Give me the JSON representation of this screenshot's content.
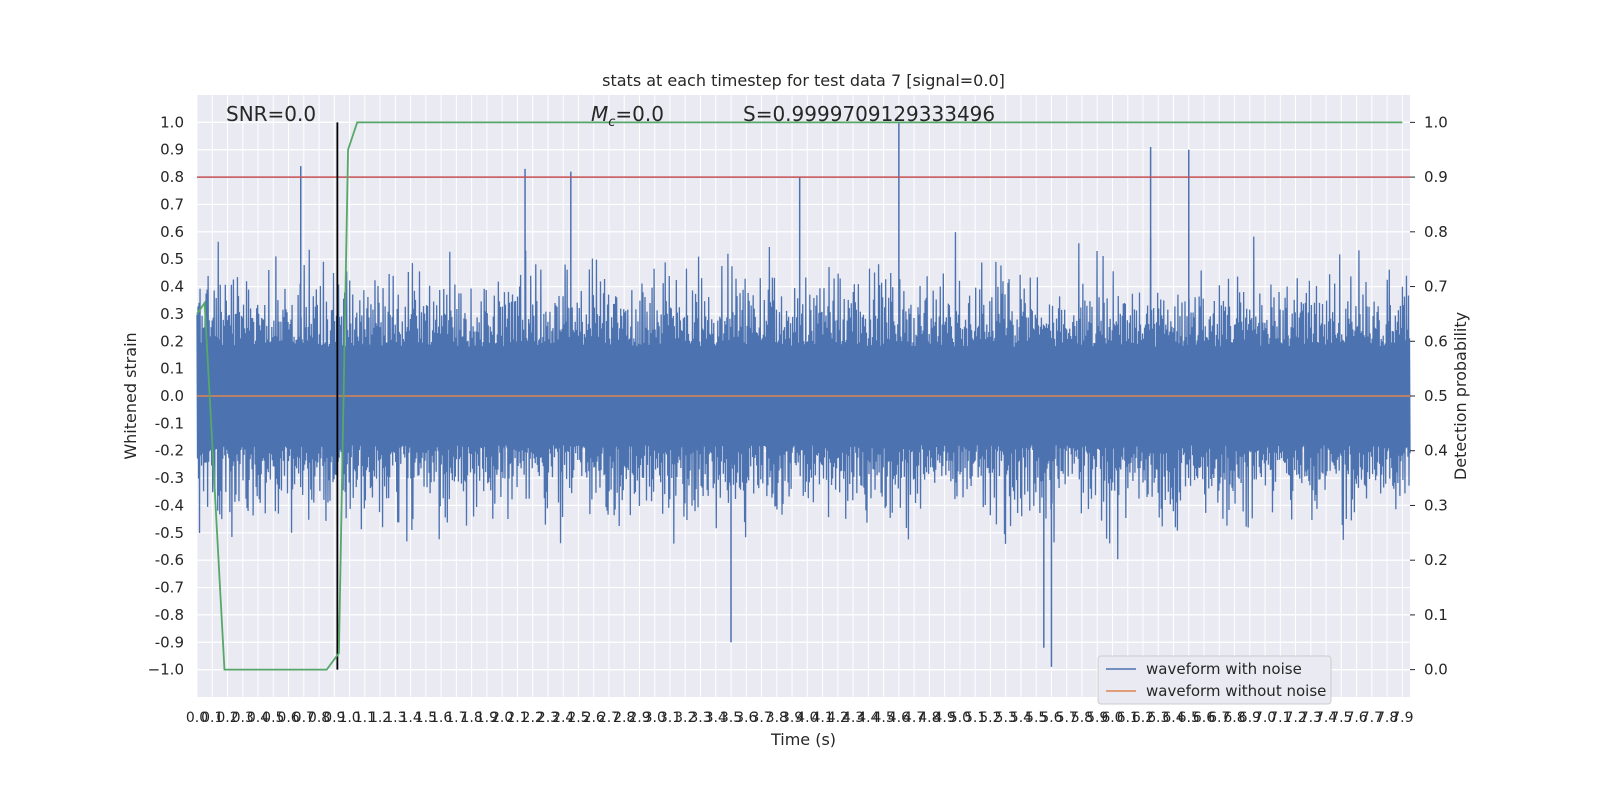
{
  "chart_data": {
    "type": "line",
    "title": "stats at each timestep for test data 7 [signal=0.0]",
    "xlabel": "Time (s)",
    "ylabel": "Whitened strain",
    "y2label": "Detection probability",
    "xlim": [
      0.0,
      7.95
    ],
    "ylim": [
      -1.1,
      1.1
    ],
    "y2lim": [
      -0.05,
      1.05
    ],
    "x_ticks": [
      "0.0",
      "0.1",
      "0.2",
      "0.3",
      "0.4",
      "0.5",
      "0.6",
      "0.7",
      "0.8",
      "0.9",
      "1.0",
      "1.1",
      "1.2",
      "1.3",
      "1.4",
      "1.5",
      "1.6",
      "1.7",
      "1.8",
      "1.9",
      "2.0",
      "2.1",
      "2.2",
      "2.3",
      "2.4",
      "2.5",
      "2.6",
      "2.7",
      "2.8",
      "2.9",
      "3.0",
      "3.1",
      "3.2",
      "3.3",
      "3.4",
      "3.5",
      "3.6",
      "3.7",
      "3.8",
      "3.9",
      "4.0",
      "4.1",
      "4.2",
      "4.3",
      "4.4",
      "4.5",
      "4.6",
      "4.7",
      "4.8",
      "4.9",
      "5.0",
      "5.1",
      "5.2",
      "5.3",
      "5.4",
      "5.5",
      "5.6",
      "5.7",
      "5.8",
      "5.9",
      "6.0",
      "6.1",
      "6.2",
      "6.3",
      "6.4",
      "6.5",
      "6.6",
      "6.7",
      "6.8",
      "6.9",
      "7.0",
      "7.1",
      "7.2",
      "7.3",
      "7.4",
      "7.5",
      "7.6",
      "7.7",
      "7.8",
      "7.9"
    ],
    "y_ticks": [
      "1.0",
      "0.9",
      "0.8",
      "0.7",
      "0.6",
      "0.5",
      "0.4",
      "0.3",
      "0.2",
      "0.1",
      "0.0",
      "-0.1",
      "-0.2",
      "-0.3",
      "-0.4",
      "-0.5",
      "-0.6",
      "-0.7",
      "-0.8",
      "-0.9",
      "−1.0"
    ],
    "y2_ticks": [
      "1.0",
      "0.9",
      "0.8",
      "0.7",
      "0.6",
      "0.5",
      "0.4",
      "0.3",
      "0.2",
      "0.1",
      "0.0"
    ],
    "annotations": {
      "snr": "SNR=0.0",
      "mc_symbol": "M",
      "mc_sub": "c",
      "mc_value": "=0.0",
      "s": "S=0.9999709129333496"
    },
    "threshold_prob": 0.9,
    "vline_time": 0.92,
    "legend": {
      "placement": "lower-right",
      "entries": [
        "waveform with noise",
        "waveform without noise"
      ]
    },
    "series": [
      {
        "name": "waveform with noise",
        "kind": "noise",
        "amplitude_envelope": 0.6,
        "peak_values": [
          0.84,
          0.83,
          0.82,
          0.8,
          1.0,
          0.91,
          0.9,
          -0.9,
          -0.92,
          -0.99
        ]
      },
      {
        "name": "waveform without noise",
        "x": [
          0.0,
          7.95
        ],
        "y": [
          0.0,
          0.0
        ]
      },
      {
        "name": "detection probability",
        "axis": "right",
        "x": [
          0.0,
          0.05,
          0.18,
          0.19,
          0.85,
          0.93,
          0.99,
          1.05,
          7.9
        ],
        "y": [
          0.65,
          0.67,
          0.0,
          0.0,
          0.0,
          0.03,
          0.95,
          1.0,
          1.0
        ]
      }
    ],
    "colors": {
      "noise": "#4c72b0",
      "clean": "#dd8452",
      "prob": "#55a868",
      "threshold": "#c44e52",
      "vline": "#000000",
      "axes_bg": "#eaeaf2",
      "grid": "#ffffff"
    },
    "grid": true
  }
}
